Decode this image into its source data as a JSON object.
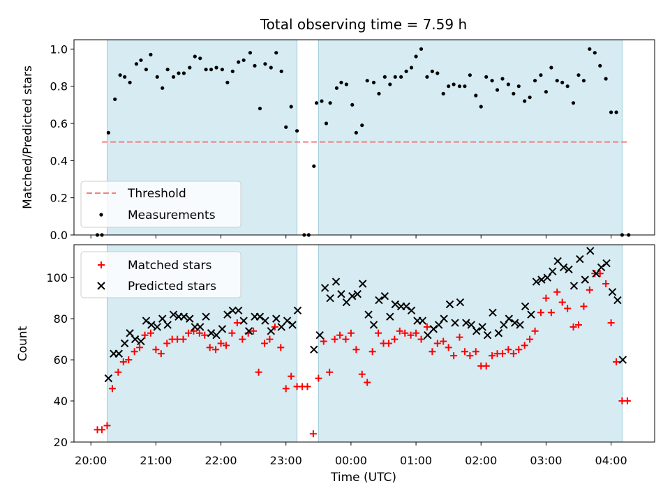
{
  "figure": {
    "title": "Total observing time = 7.59 h",
    "xlabel": "Time (UTC)",
    "x_tick_labels": [
      "20:00",
      "21:00",
      "22:00",
      "23:00",
      "00:00",
      "01:00",
      "02:00",
      "03:00",
      "04:00"
    ]
  },
  "chart_data": [
    {
      "type": "scatter",
      "panel": "top",
      "ylabel": "Matched/Predicted stars",
      "xlim_hours": [
        19.74,
        28.67
      ],
      "ylim": [
        0,
        1.05
      ],
      "y_ticks": [
        "0.0",
        "0.2",
        "0.4",
        "0.6",
        "0.8",
        "1.0"
      ],
      "x_unit": "hours after 00:00 UTC on first night",
      "observing_windows": [
        [
          20.25,
          23.17
        ],
        [
          23.5,
          28.17
        ]
      ],
      "legend": {
        "placement": "lower left",
        "entries": [
          "Threshold",
          "Measurements"
        ]
      },
      "threshold": {
        "name": "Threshold",
        "value": 0.5,
        "x_range": [
          20.17,
          28.27
        ],
        "color": "#f08080"
      },
      "series": [
        {
          "name": "Measurements",
          "color": "#000000",
          "x": [
            20.1,
            20.17,
            20.27,
            20.37,
            20.45,
            20.52,
            20.6,
            20.7,
            20.77,
            20.85,
            20.92,
            21.02,
            21.1,
            21.18,
            21.27,
            21.35,
            21.43,
            21.52,
            21.6,
            21.68,
            21.77,
            21.85,
            21.93,
            22.02,
            22.1,
            22.18,
            22.27,
            22.35,
            22.45,
            22.52,
            22.6,
            22.68,
            22.77,
            22.85,
            22.93,
            23.0,
            23.08,
            23.17,
            23.28,
            23.35,
            23.43,
            23.47,
            23.55,
            23.62,
            23.68,
            23.78,
            23.85,
            23.93,
            24.02,
            24.08,
            24.17,
            24.25,
            24.35,
            24.43,
            24.52,
            24.6,
            24.68,
            24.77,
            24.85,
            24.93,
            25.0,
            25.08,
            25.17,
            25.25,
            25.33,
            25.42,
            25.5,
            25.58,
            25.67,
            25.75,
            25.83,
            25.92,
            26.0,
            26.08,
            26.17,
            26.25,
            26.33,
            26.42,
            26.5,
            26.58,
            26.67,
            26.75,
            26.83,
            26.92,
            27.0,
            27.08,
            27.17,
            27.25,
            27.33,
            27.42,
            27.5,
            27.58,
            27.67,
            27.75,
            27.83,
            27.92,
            28.0,
            28.08,
            28.17,
            28.27
          ],
          "y": [
            0.0,
            0.0,
            0.55,
            0.73,
            0.86,
            0.85,
            0.82,
            0.92,
            0.94,
            0.89,
            0.97,
            0.85,
            0.79,
            0.89,
            0.85,
            0.87,
            0.87,
            0.9,
            0.96,
            0.95,
            0.89,
            0.89,
            0.9,
            0.89,
            0.82,
            0.88,
            0.93,
            0.94,
            0.98,
            0.91,
            0.68,
            0.92,
            0.9,
            0.98,
            0.88,
            0.58,
            0.69,
            0.56,
            0.0,
            0.0,
            0.37,
            0.71,
            0.72,
            0.6,
            0.71,
            0.79,
            0.82,
            0.81,
            0.7,
            0.55,
            0.59,
            0.83,
            0.82,
            0.76,
            0.85,
            0.81,
            0.85,
            0.85,
            0.88,
            0.9,
            0.96,
            1.0,
            0.85,
            0.88,
            0.87,
            0.76,
            0.8,
            0.81,
            0.8,
            0.8,
            0.86,
            0.75,
            0.69,
            0.85,
            0.83,
            0.78,
            0.84,
            0.81,
            0.76,
            0.8,
            0.72,
            0.74,
            0.83,
            0.86,
            0.77,
            0.9,
            0.83,
            0.82,
            0.8,
            0.71,
            0.86,
            0.83,
            1.0,
            0.98,
            0.91,
            0.84,
            0.66,
            0.66,
            0.0,
            0.0
          ]
        }
      ]
    },
    {
      "type": "scatter",
      "panel": "bottom",
      "ylabel": "Count",
      "xlim_hours": [
        19.74,
        28.67
      ],
      "ylim": [
        20,
        116
      ],
      "y_ticks": [
        "20",
        "40",
        "60",
        "80",
        "100"
      ],
      "observing_windows": [
        [
          20.25,
          23.17
        ],
        [
          23.5,
          28.17
        ]
      ],
      "legend": {
        "placement": "upper left",
        "entries": [
          "Matched stars",
          "Predicted stars"
        ]
      },
      "series": [
        {
          "name": "Matched stars",
          "marker": "plus",
          "color": "#ff0000",
          "x": [
            20.1,
            20.17,
            20.25,
            20.33,
            20.42,
            20.5,
            20.58,
            20.67,
            20.75,
            20.83,
            20.92,
            21.0,
            21.08,
            21.17,
            21.25,
            21.33,
            21.42,
            21.5,
            21.58,
            21.67,
            21.75,
            21.83,
            21.92,
            22.0,
            22.08,
            22.17,
            22.25,
            22.33,
            22.42,
            22.5,
            22.58,
            22.67,
            22.75,
            22.83,
            22.92,
            23.0,
            23.08,
            23.17,
            23.25,
            23.33,
            23.42,
            23.5,
            23.58,
            23.67,
            23.75,
            23.83,
            23.92,
            24.0,
            24.08,
            24.17,
            24.25,
            24.33,
            24.42,
            24.5,
            24.58,
            24.67,
            24.75,
            24.83,
            24.92,
            25.0,
            25.08,
            25.17,
            25.25,
            25.33,
            25.42,
            25.5,
            25.58,
            25.67,
            25.75,
            25.83,
            25.92,
            26.0,
            26.08,
            26.17,
            26.25,
            26.33,
            26.42,
            26.5,
            26.58,
            26.67,
            26.75,
            26.83,
            26.92,
            27.0,
            27.08,
            27.17,
            27.25,
            27.33,
            27.42,
            27.5,
            27.58,
            27.67,
            27.75,
            27.83,
            27.92,
            28.0,
            28.08,
            28.17,
            28.25
          ],
          "y": [
            26,
            26,
            28,
            46,
            54,
            59,
            60,
            64,
            66,
            72,
            73,
            65,
            63,
            68,
            70,
            70,
            70,
            73,
            74,
            73,
            72,
            66,
            65,
            68,
            67,
            73,
            78,
            70,
            73,
            74,
            54,
            68,
            70,
            76,
            66,
            46,
            52,
            47,
            47,
            47,
            24,
            51,
            69,
            54,
            70,
            72,
            70,
            73,
            65,
            53,
            49,
            64,
            73,
            68,
            68,
            70,
            74,
            73,
            72,
            73,
            70,
            76,
            64,
            68,
            69,
            66,
            62,
            71,
            64,
            62,
            64,
            57,
            57,
            62,
            63,
            63,
            65,
            63,
            65,
            67,
            70,
            74,
            83,
            90,
            83,
            93,
            88,
            85,
            76,
            77,
            86,
            94,
            102,
            102,
            97,
            78,
            59,
            40,
            40
          ]
        },
        {
          "name": "Predicted stars",
          "marker": "x",
          "color": "#000000",
          "x": [
            20.27,
            20.35,
            20.43,
            20.52,
            20.6,
            20.68,
            20.77,
            20.85,
            20.93,
            21.02,
            21.1,
            21.18,
            21.27,
            21.35,
            21.43,
            21.52,
            21.6,
            21.68,
            21.77,
            21.85,
            21.93,
            22.02,
            22.1,
            22.18,
            22.27,
            22.35,
            22.43,
            22.52,
            22.6,
            22.68,
            22.77,
            22.85,
            22.93,
            23.02,
            23.1,
            23.18,
            23.43,
            23.52,
            23.6,
            23.68,
            23.77,
            23.85,
            23.93,
            24.02,
            24.1,
            24.18,
            24.27,
            24.35,
            24.43,
            24.52,
            24.6,
            24.68,
            24.77,
            24.85,
            24.93,
            25.02,
            25.1,
            25.18,
            25.27,
            25.35,
            25.43,
            25.52,
            25.6,
            25.68,
            25.77,
            25.85,
            25.93,
            26.02,
            26.1,
            26.18,
            26.27,
            26.35,
            26.43,
            26.52,
            26.6,
            26.68,
            26.77,
            26.85,
            26.93,
            27.02,
            27.1,
            27.18,
            27.27,
            27.35,
            27.43,
            27.52,
            27.6,
            27.68,
            27.77,
            27.85,
            27.93,
            28.02,
            28.1,
            28.18
          ],
          "y": [
            51,
            63,
            63,
            68,
            73,
            70,
            69,
            79,
            77,
            76,
            80,
            77,
            82,
            81,
            81,
            80,
            76,
            76,
            81,
            73,
            72,
            75,
            82,
            84,
            84,
            79,
            74,
            81,
            81,
            79,
            74,
            80,
            76,
            79,
            77,
            84,
            65,
            72,
            95,
            90,
            98,
            92,
            88,
            91,
            92,
            97,
            82,
            77,
            89,
            91,
            81,
            87,
            86,
            86,
            84,
            79,
            79,
            72,
            75,
            77,
            80,
            87,
            78,
            88,
            78,
            77,
            74,
            76,
            72,
            83,
            73,
            77,
            80,
            78,
            77,
            86,
            82,
            98,
            99,
            100,
            103,
            108,
            105,
            104,
            96,
            109,
            99,
            113,
            102,
            105,
            107,
            93,
            89,
            60
          ]
        }
      ]
    }
  ]
}
